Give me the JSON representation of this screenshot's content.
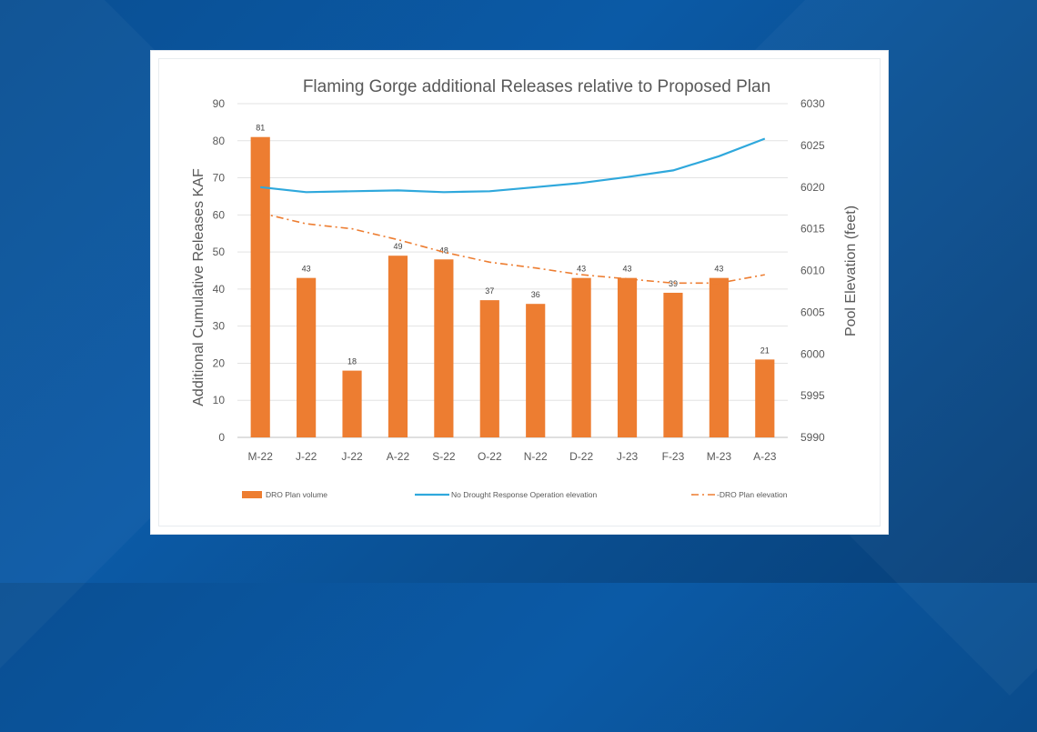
{
  "chart_data": {
    "type": "bar+line",
    "title": "Flaming Gorge additional Releases relative to Proposed Plan",
    "ylabel_left": "Additional Cumulative Releases KAF",
    "ylabel_right": "Pool Elevation (feet)",
    "categories": [
      "M-22",
      "J-22",
      "J-22",
      "A-22",
      "S-22",
      "O-22",
      "N-22",
      "D-22",
      "J-23",
      "F-23",
      "M-23",
      "A-23"
    ],
    "ylim_left": [
      0,
      90
    ],
    "yticks_left": [
      "0",
      "10",
      "20",
      "30",
      "40",
      "50",
      "60",
      "70",
      "80",
      "90"
    ],
    "ylim_right": [
      5990,
      6030
    ],
    "yticks_right": [
      "5990",
      "5995",
      "6000",
      "6005",
      "6010",
      "6015",
      "6020",
      "6025",
      "6030"
    ],
    "grid": true,
    "legend_position": "bottom",
    "series": [
      {
        "name": "DRO Plan volume",
        "kind": "bar",
        "axis": "left",
        "color": "#ed7d31",
        "values": [
          81,
          43,
          18,
          49,
          48,
          37,
          36,
          43,
          43,
          39,
          43,
          21
        ],
        "labels": [
          "81",
          "43",
          "18",
          "49",
          "48",
          "37",
          "36",
          "43",
          "43",
          "39",
          "43",
          "21"
        ]
      },
      {
        "name": "No Drought Response Operation elevation",
        "kind": "line",
        "axis": "right",
        "color": "#2fa8dc",
        "style": "solid",
        "values": [
          6020.0,
          6019.4,
          6019.5,
          6019.6,
          6019.4,
          6019.5,
          6020.0,
          6020.5,
          6021.2,
          6022.0,
          6023.7,
          6025.8
        ]
      },
      {
        "name": "DRO Plan elevation",
        "kind": "line",
        "axis": "right",
        "color": "#ed7d31",
        "style": "dash-dot",
        "values": [
          6016.9,
          6015.6,
          6015.0,
          6013.7,
          6012.2,
          6011.0,
          6010.3,
          6009.5,
          6009.0,
          6008.5,
          6008.5,
          6009.5
        ]
      }
    ]
  },
  "legend": [
    {
      "label": "DRO Plan volume"
    },
    {
      "label": "No Drought Response Operation elevation"
    },
    {
      "label": "-DRO Plan elevation"
    }
  ]
}
